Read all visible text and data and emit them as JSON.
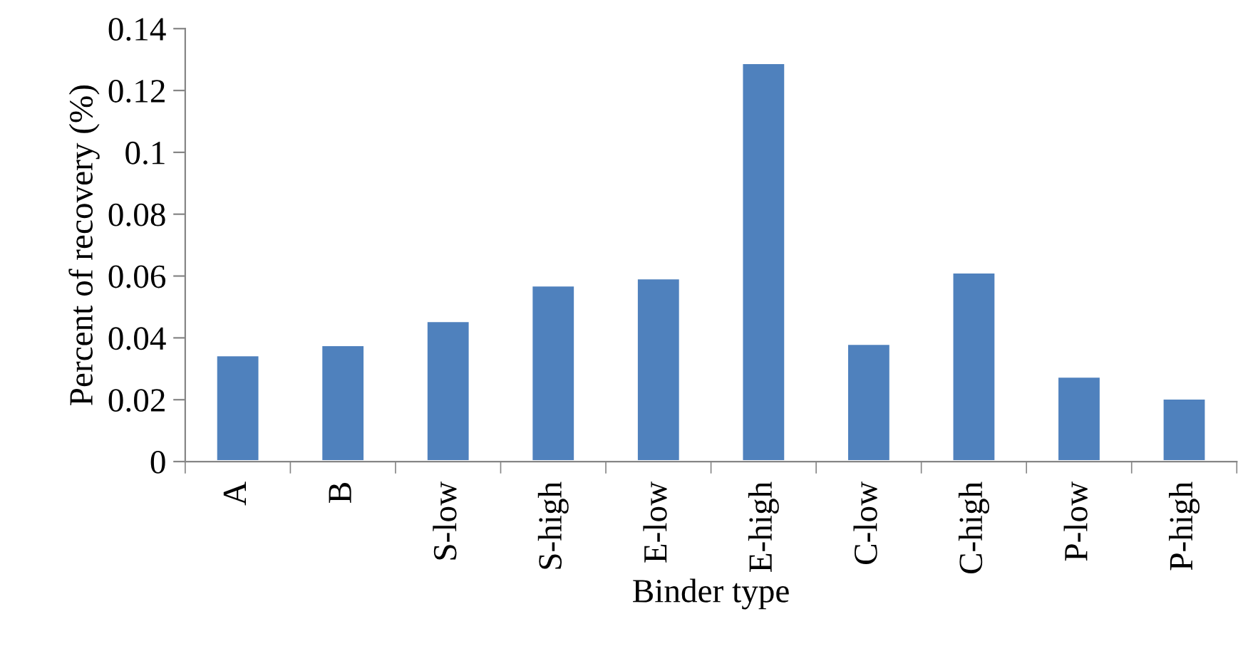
{
  "chart_data": {
    "type": "bar",
    "xlabel": "Binder type",
    "ylabel": "Percent of recovery (%)",
    "categories": [
      "A",
      "B",
      "S-low",
      "S-high",
      "E-low",
      "E-high",
      "C-low",
      "C-high",
      "P-low",
      "P-high"
    ],
    "values": [
      0.0345,
      0.0378,
      0.0456,
      0.0571,
      0.0594,
      0.129,
      0.0382,
      0.0613,
      0.0276,
      0.0205
    ],
    "color": "#4f81bd",
    "ylim": [
      0,
      0.14
    ],
    "yticks": [
      {
        "value": 0,
        "label": "0"
      },
      0.02,
      0.04,
      0.06,
      0.08,
      {
        "value": 0.1,
        "label": "0.1"
      },
      0.12,
      0.14
    ],
    "grid": false
  }
}
